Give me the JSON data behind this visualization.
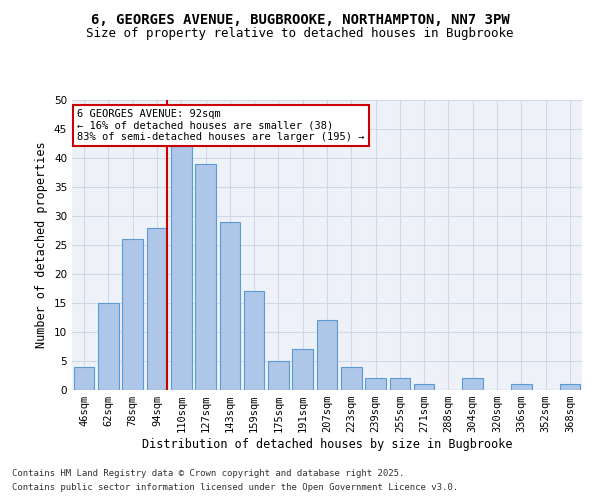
{
  "title1": "6, GEORGES AVENUE, BUGBROOKE, NORTHAMPTON, NN7 3PW",
  "title2": "Size of property relative to detached houses in Bugbrooke",
  "xlabel": "Distribution of detached houses by size in Bugbrooke",
  "ylabel": "Number of detached properties",
  "categories": [
    "46sqm",
    "62sqm",
    "78sqm",
    "94sqm",
    "110sqm",
    "127sqm",
    "143sqm",
    "159sqm",
    "175sqm",
    "191sqm",
    "207sqm",
    "223sqm",
    "239sqm",
    "255sqm",
    "271sqm",
    "288sqm",
    "304sqm",
    "320sqm",
    "336sqm",
    "352sqm",
    "368sqm"
  ],
  "values": [
    4,
    15,
    26,
    28,
    42,
    39,
    29,
    17,
    5,
    7,
    12,
    4,
    2,
    2,
    1,
    0,
    2,
    0,
    1,
    0,
    1
  ],
  "bar_color": "#aec6e8",
  "bar_edge_color": "#5b9bd5",
  "red_line_index": 3,
  "annotation_title": "6 GEORGES AVENUE: 92sqm",
  "annotation_line1": "← 16% of detached houses are smaller (38)",
  "annotation_line2": "83% of semi-detached houses are larger (195) →",
  "annotation_box_color": "#ffffff",
  "annotation_box_edge_color": "#cc0000",
  "red_line_color": "#cc0000",
  "ylim": [
    0,
    50
  ],
  "yticks": [
    0,
    5,
    10,
    15,
    20,
    25,
    30,
    35,
    40,
    45,
    50
  ],
  "grid_color": "#d0d8e8",
  "bg_color": "#eef2f8",
  "footer1": "Contains HM Land Registry data © Crown copyright and database right 2025.",
  "footer2": "Contains public sector information licensed under the Open Government Licence v3.0.",
  "title1_fontsize": 10,
  "title2_fontsize": 9,
  "xlabel_fontsize": 8.5,
  "ylabel_fontsize": 8.5,
  "tick_fontsize": 7.5,
  "annotation_fontsize": 7.5,
  "footer_fontsize": 6.5
}
